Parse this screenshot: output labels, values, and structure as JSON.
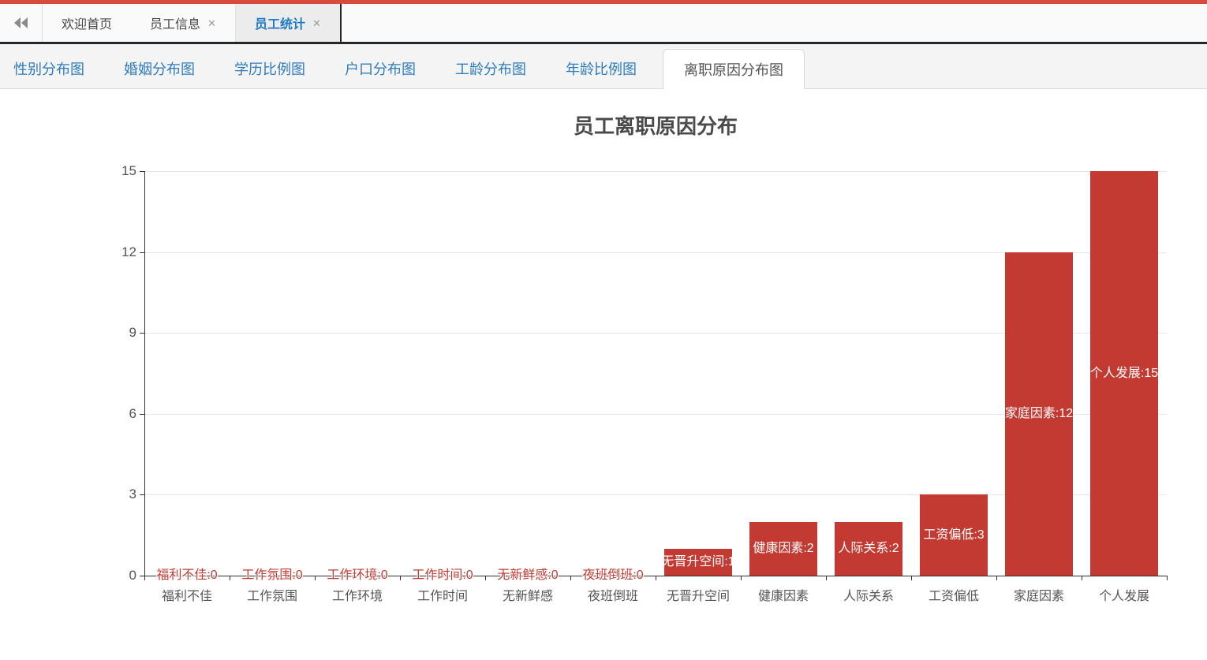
{
  "app": {
    "icons": {
      "close": "✕"
    },
    "colors": {
      "top_strip": "#d84a3b",
      "bar_red": "#c33a32",
      "active_tab_blue": "#1e7bc4",
      "subtab_blue": "#2e7cbe"
    },
    "top_tabs": {
      "items": [
        {
          "label": "欢迎首页",
          "closable": false,
          "active": false
        },
        {
          "label": "员工信息",
          "closable": true,
          "active": false
        },
        {
          "label": "员工统计",
          "closable": true,
          "active": true
        }
      ]
    },
    "subtabs": {
      "items": [
        {
          "label": "性别分布图",
          "active": false
        },
        {
          "label": "婚姻分布图",
          "active": false
        },
        {
          "label": "学历比例图",
          "active": false
        },
        {
          "label": "户口分布图",
          "active": false
        },
        {
          "label": "工龄分布图",
          "active": false
        },
        {
          "label": "年龄比例图",
          "active": false
        },
        {
          "label": "离职原因分布图",
          "active": true
        }
      ]
    }
  },
  "chart_data": {
    "type": "bar",
    "title": "员工离职原因分布",
    "categories": [
      "福利不佳",
      "工作氛围",
      "工作环境",
      "工作时间",
      "无新鲜感",
      "夜班倒班",
      "无晋升空间",
      "健康因素",
      "人际关系",
      "工资偏低",
      "家庭因素",
      "个人发展"
    ],
    "values": [
      0,
      0,
      0,
      0,
      0,
      0,
      1,
      2,
      2,
      3,
      12,
      15
    ],
    "bar_labels": [
      "福利不佳:0",
      "工作氛围:0",
      "工作环境:0",
      "工作时间:0",
      "无新鲜感:0",
      "夜班倒班:0",
      "无晋升空间:1",
      "健康因素:2",
      "人际关系:2",
      "工资偏低:3",
      "家庭因素:12",
      "个人发展:15"
    ],
    "yticks": [
      0,
      3,
      6,
      9,
      12,
      15
    ],
    "ylim": [
      0,
      15
    ],
    "xlabel": "",
    "ylabel": "",
    "bar_color": "#c33a32",
    "label_color_inside": "#ffffff",
    "grid": true,
    "legend_position": "none"
  }
}
